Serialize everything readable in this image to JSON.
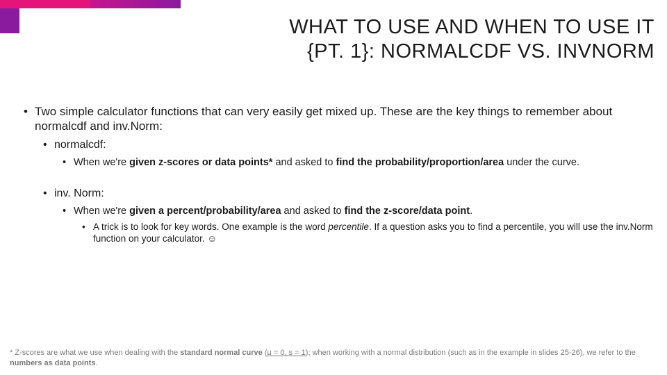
{
  "colors": {
    "accent_gradient_start": "#e5147a",
    "accent_gradient_mid": "#c6168f",
    "accent_gradient_end": "#8a1a9e",
    "text": "#1a1a1a",
    "footnote_text": "#7a7a7a",
    "background": "#ffffff"
  },
  "typography": {
    "title_fontsize": 29,
    "lvl1_fontsize": 17,
    "lvl2_fontsize": 16,
    "lvl3_fontsize": 14.5,
    "lvl4_fontsize": 13.5,
    "footnote_fontsize": 11,
    "font_family": "Arial"
  },
  "title_line1": "WHAT TO USE AND WHEN TO USE IT",
  "title_line2": "{PT. 1}: NORMALCDF VS. INVNORM",
  "bullets": {
    "intro": "Two simple calculator functions that can very easily get mixed up. These are the key things to remember about normalcdf and inv.Norm:",
    "normalcdf_label": "normalcdf:",
    "normalcdf_detail_pre": "When we're ",
    "normalcdf_detail_b1": "given z-scores or data points*",
    "normalcdf_detail_mid": " and asked to ",
    "normalcdf_detail_b2": "find the probability/proportion/area",
    "normalcdf_detail_post": " under the curve.",
    "invnorm_label": "inv. Norm:",
    "invnorm_detail_pre": "When we're ",
    "invnorm_detail_b1": "given a percent/probability/area",
    "invnorm_detail_mid": " and asked to ",
    "invnorm_detail_b2": "find the z-score/data point",
    "invnorm_detail_post": ".",
    "trick_pre": "A trick is to look for key words. One example is the word ",
    "trick_italic": "percentile",
    "trick_post": ". If a question asks you to find a percentile, you will use the inv.Norm function on your calculator. ☺"
  },
  "footnote": {
    "pre": "* Z-scores are what we use when dealing with the ",
    "b1": "standard normal curve",
    "mid1": " (",
    "u1": "μ = 0, s = 1",
    "mid2": "); when working with a normal distribution (such as in the example in slides 25-26), we refer to the ",
    "b2": "numbers as data points",
    "post": "."
  }
}
